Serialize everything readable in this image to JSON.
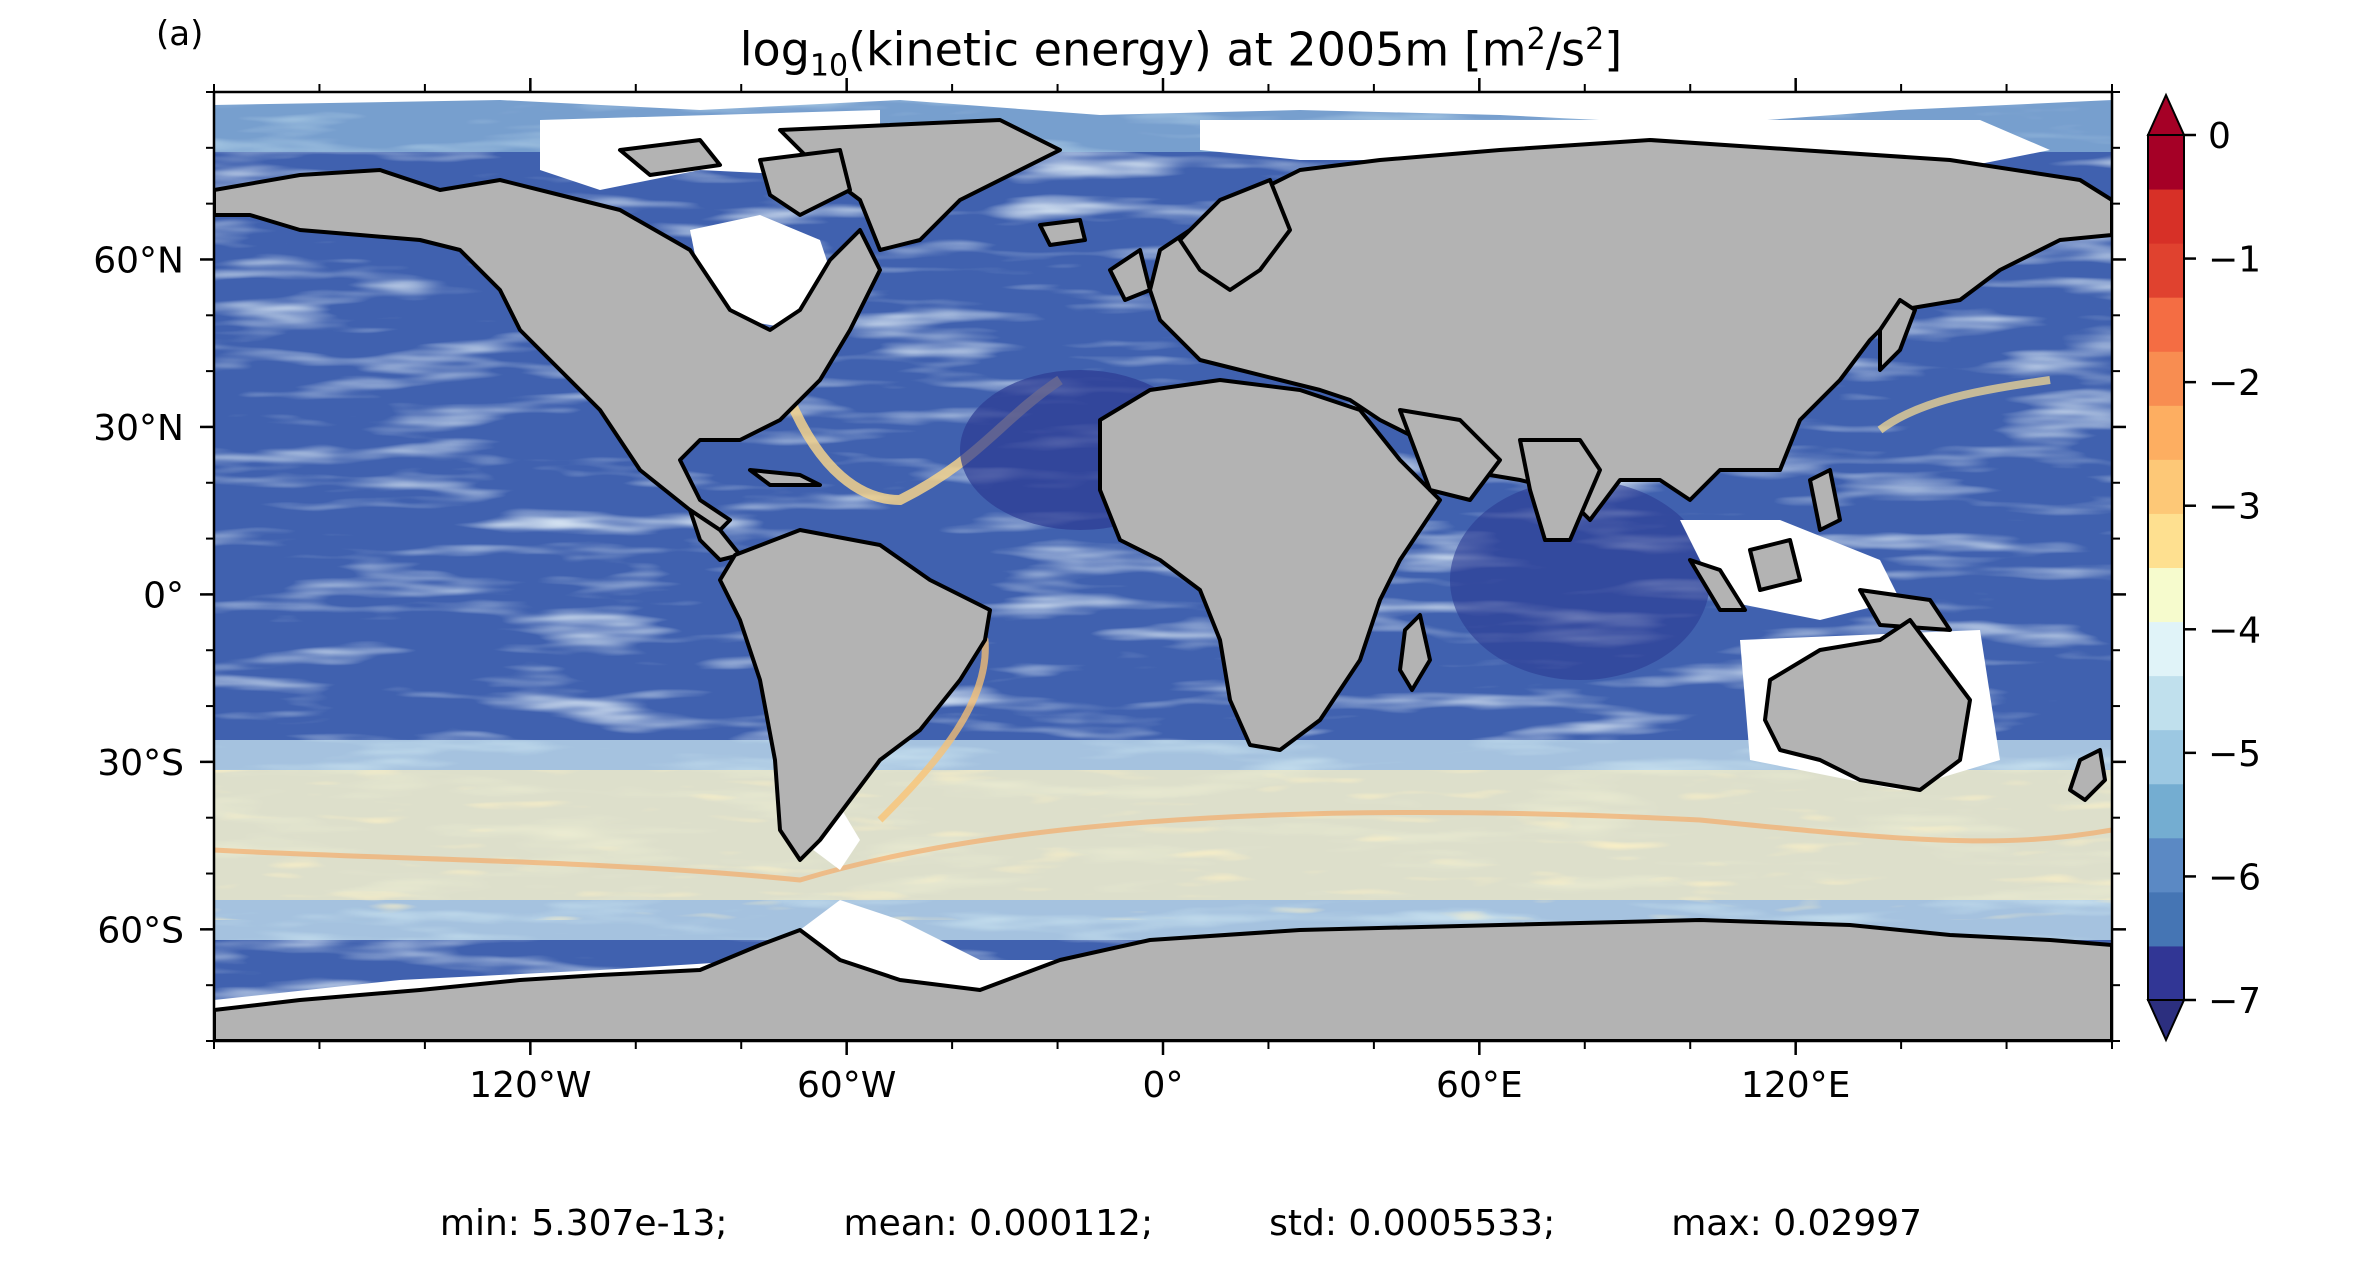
{
  "panel_label": "(a)",
  "title": {
    "prefix": "log",
    "sub": "10",
    "mid": "(kinetic energy) at 2005m [m",
    "sup1": "2",
    "mid2": "/s",
    "sup2": "2",
    "suffix": "]"
  },
  "colors": {
    "land": "#b3b3b3",
    "coast": "#000000",
    "ocean_low": "#313695",
    "ocean_mid": "#74add1",
    "ocean_high": "#fee090",
    "ocean_peak": "#f46d43",
    "colorbar": [
      "#313695",
      "#4575b4",
      "#5b89c4",
      "#74add1",
      "#9cc8e2",
      "#c0e0ed",
      "#e0f3f8",
      "#f6fbcd",
      "#fee090",
      "#fdc877",
      "#fdae61",
      "#f88d51",
      "#f46d43",
      "#e0422f",
      "#d73027",
      "#a50026"
    ],
    "colorbar_under": "#2c2f7f",
    "colorbar_over": "#a50026"
  },
  "map": {
    "projection": "equirectangular",
    "lon_range": [
      -180,
      180
    ],
    "lat_range": [
      -80,
      90
    ],
    "x_ticks": [
      "120°W",
      "60°W",
      "0°",
      "60°E",
      "120°E"
    ],
    "x_tick_values": [
      -120,
      -60,
      0,
      60,
      120
    ],
    "y_ticks": [
      "60°N",
      "30°N",
      "0°",
      "30°S",
      "60°S"
    ],
    "y_tick_values": [
      60,
      30,
      0,
      -30,
      -60
    ]
  },
  "colorbar": {
    "ticks": [
      "0",
      "−1",
      "−2",
      "−3",
      "−4",
      "−5",
      "−6",
      "−7"
    ],
    "tick_values": [
      0,
      -1,
      -2,
      -3,
      -4,
      -5,
      -6,
      -7
    ],
    "range": [
      -7,
      0
    ],
    "levels": 16,
    "extend": "both"
  },
  "stats": {
    "min": "min: 5.307e-13;",
    "mean": "mean: 0.000112;",
    "std": "std: 0.0005533;",
    "max": "max: 0.02997"
  }
}
